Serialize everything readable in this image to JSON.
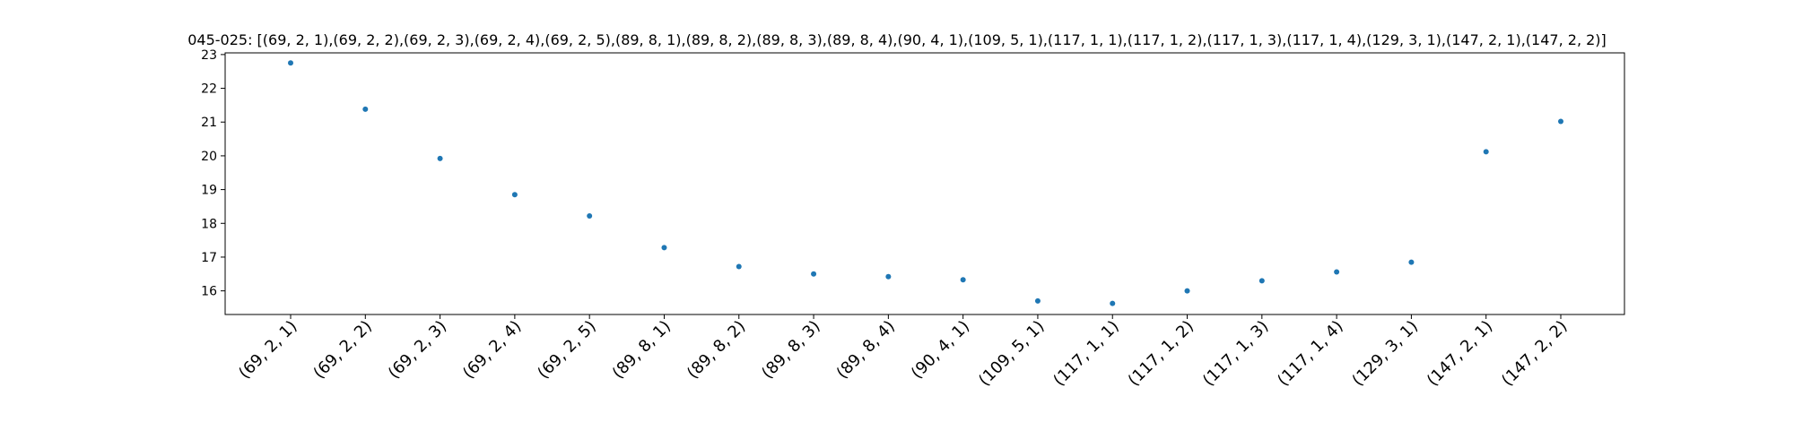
{
  "chart_data": {
    "type": "scatter",
    "title": "045-025: [(69, 2, 1),(69, 2, 2),(69, 2, 3),(69, 2, 4),(69, 2, 5),(89, 8, 1),(89, 8, 2),(89, 8, 3),(89, 8, 4),(90, 4, 1),(109, 5, 1),(117, 1, 1),(117, 1, 2),(117, 1, 3),(117, 1, 4),(129, 3, 1),(147, 2, 1),(147, 2, 2)]",
    "xlabel": "",
    "ylabel": "",
    "categories": [
      "(69, 2, 1)",
      "(69, 2, 2)",
      "(69, 2, 3)",
      "(69, 2, 4)",
      "(69, 2, 5)",
      "(89, 8, 1)",
      "(89, 8, 2)",
      "(89, 8, 3)",
      "(89, 8, 4)",
      "(90, 4, 1)",
      "(109, 5, 1)",
      "(117, 1, 1)",
      "(117, 1, 2)",
      "(117, 1, 3)",
      "(117, 1, 4)",
      "(129, 3, 1)",
      "(147, 2, 1)",
      "(147, 2, 2)"
    ],
    "values": [
      22.75,
      21.38,
      19.92,
      18.85,
      18.22,
      17.28,
      16.72,
      16.5,
      16.42,
      16.33,
      15.7,
      15.63,
      16.0,
      16.3,
      16.56,
      16.85,
      20.12,
      21.02
    ],
    "ylim": [
      15.3,
      23.05
    ],
    "yticks": [
      16,
      17,
      18,
      19,
      20,
      21,
      22,
      23
    ],
    "grid": false,
    "legend": "none",
    "colors": {
      "marker": "#1f77b4",
      "axis": "#000000",
      "background": "#ffffff"
    }
  }
}
